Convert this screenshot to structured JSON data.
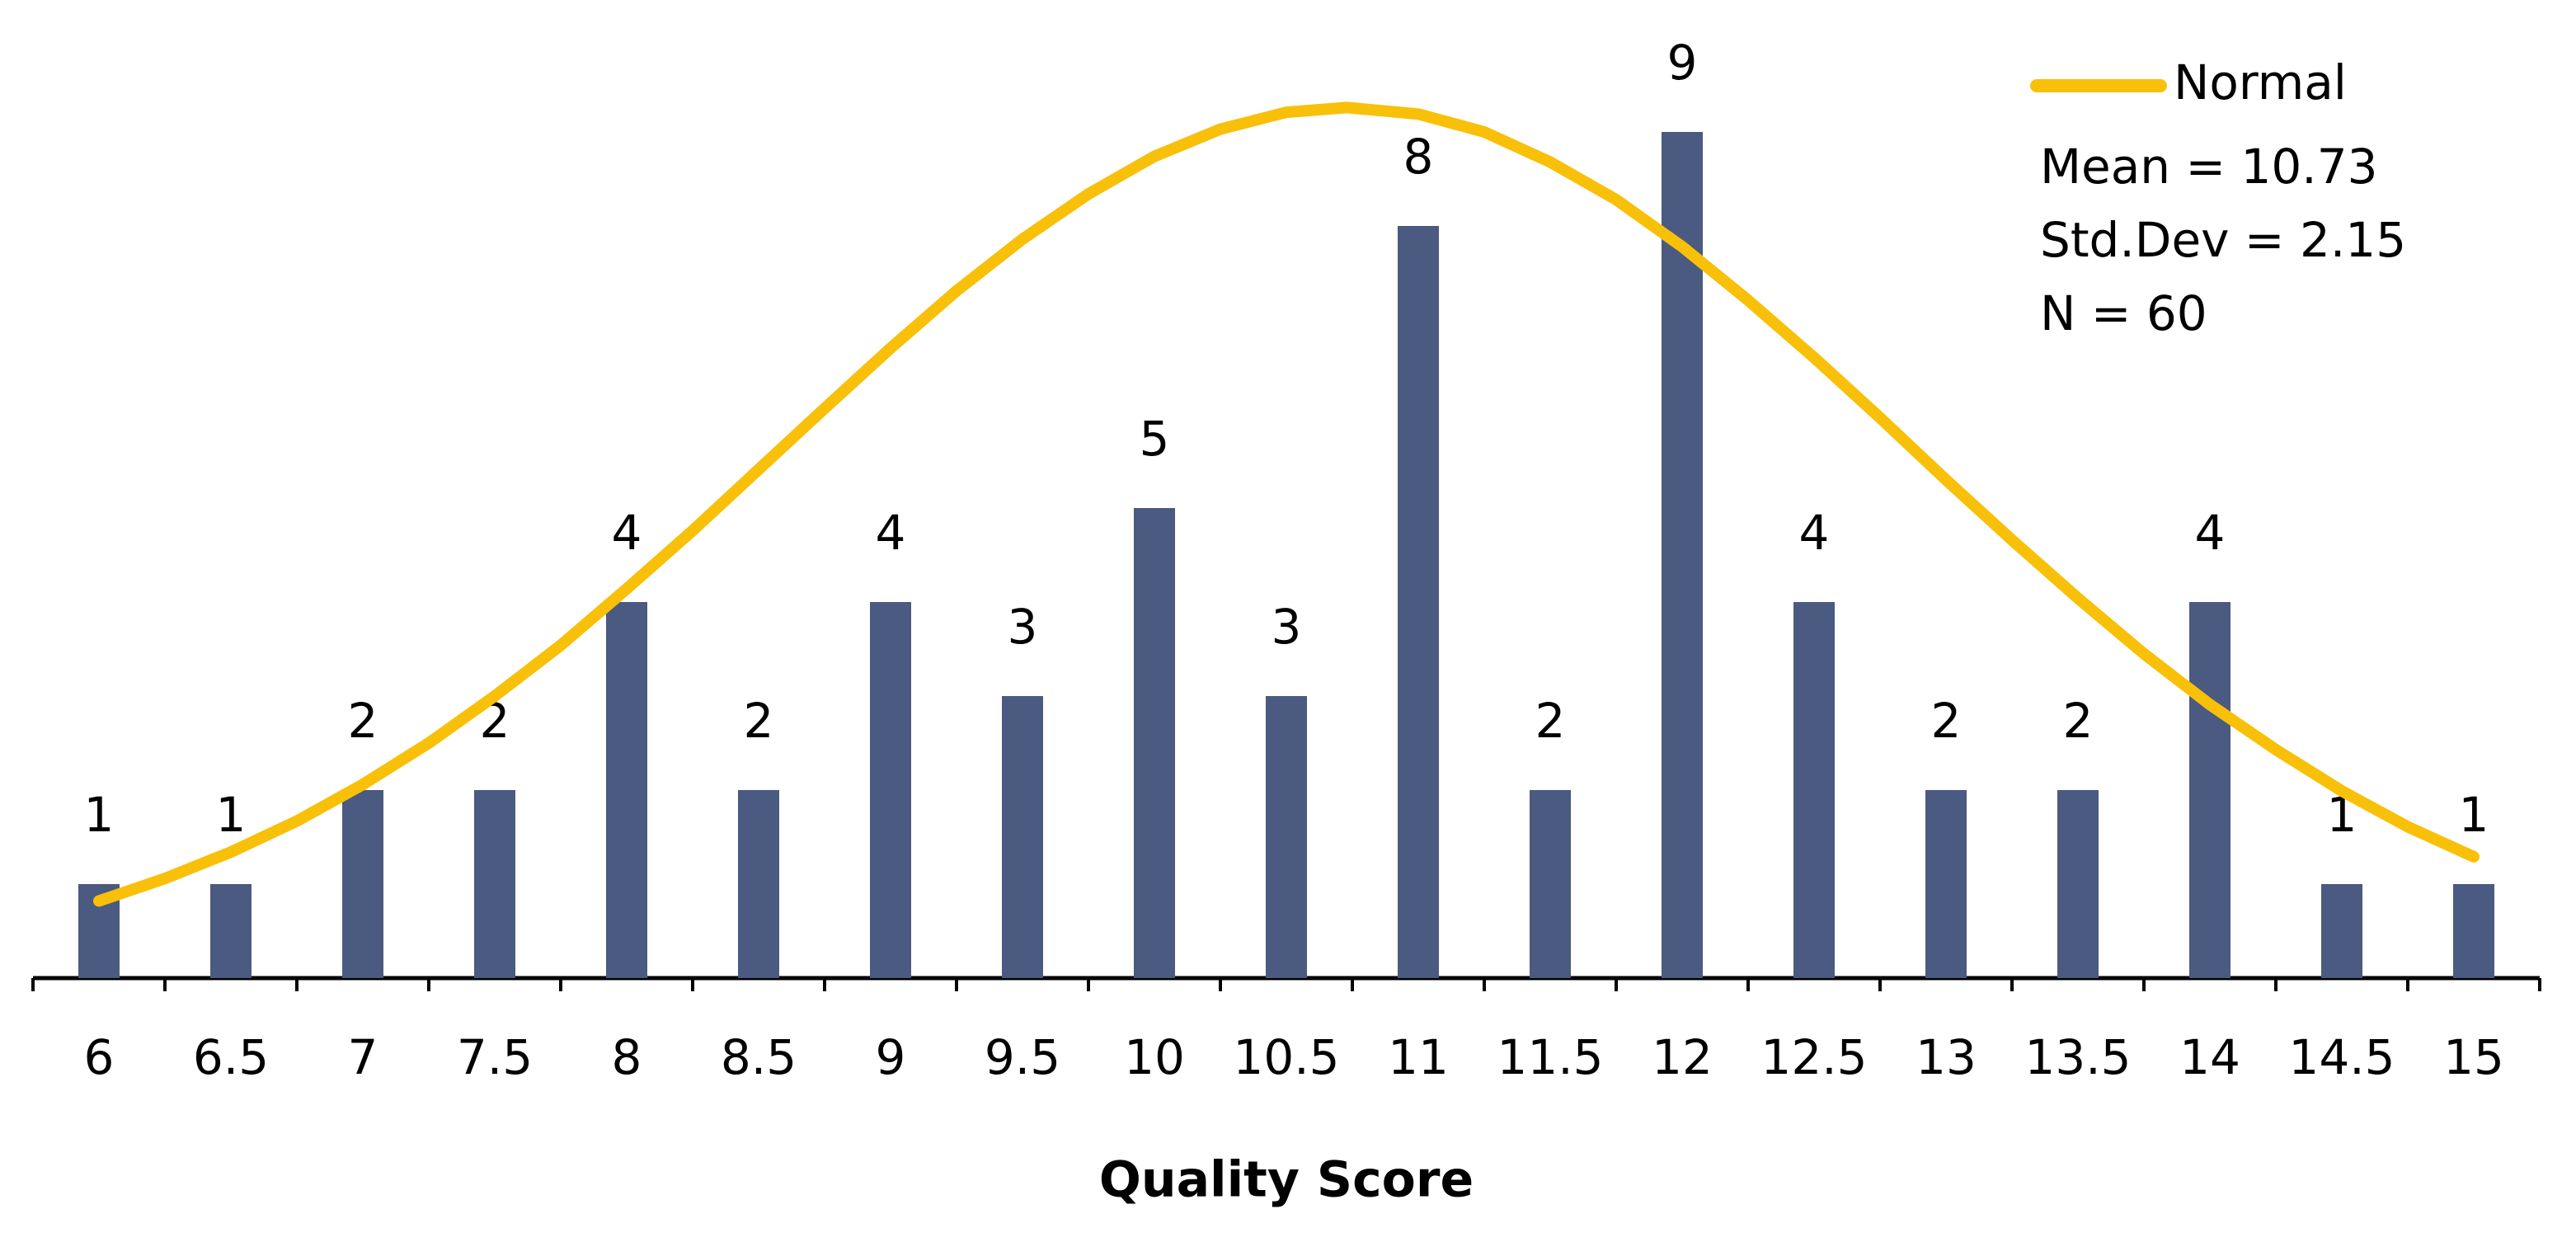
{
  "chart_data": {
    "type": "bar",
    "x_label": "Quality Score",
    "x": [
      6,
      6.5,
      7,
      7.5,
      8,
      8.5,
      9,
      9.5,
      10,
      10.5,
      11,
      11.5,
      12,
      12.5,
      13,
      13.5,
      14,
      14.5,
      15
    ],
    "values": [
      1,
      1,
      2,
      2,
      4,
      2,
      4,
      3,
      5,
      3,
      8,
      2,
      9,
      4,
      2,
      2,
      4,
      1,
      1
    ],
    "color": "#4a5a80",
    "xlim": [
      5.75,
      15.25
    ],
    "ylim": [
      0,
      10
    ],
    "xticks": [
      6,
      6.5,
      7,
      7.5,
      8,
      8.5,
      9,
      9.5,
      10,
      10.5,
      11,
      11.5,
      12,
      12.5,
      13,
      13.5,
      14,
      14.5,
      15
    ],
    "overlay": {
      "type": "line",
      "name": "Normal",
      "color": "#f8c009",
      "x": [
        6,
        6.25,
        6.5,
        6.75,
        7,
        7.25,
        7.5,
        7.75,
        8,
        8.25,
        8.5,
        8.75,
        9,
        9.25,
        9.5,
        9.75,
        10,
        10.25,
        10.5,
        10.73,
        11,
        11.25,
        11.5,
        11.75,
        12,
        12.25,
        12.5,
        12.75,
        13,
        13.25,
        13.5,
        13.75,
        14,
        14.25,
        14.5,
        14.75,
        15
      ],
      "values": [
        0.82,
        1.06,
        1.34,
        1.67,
        2.06,
        2.5,
        3.0,
        3.54,
        4.14,
        4.76,
        5.41,
        6.06,
        6.7,
        7.31,
        7.86,
        8.34,
        8.74,
        9.03,
        9.21,
        9.26,
        9.19,
        9.0,
        8.68,
        8.28,
        7.78,
        7.21,
        6.6,
        5.96,
        5.3,
        4.66,
        4.04,
        3.45,
        2.91,
        2.43,
        1.99,
        1.61,
        1.29
      ]
    },
    "annotations": [
      "Mean = 10.73",
      "Std.Dev = 2.15",
      "N = 60"
    ],
    "legend": "top-right"
  }
}
